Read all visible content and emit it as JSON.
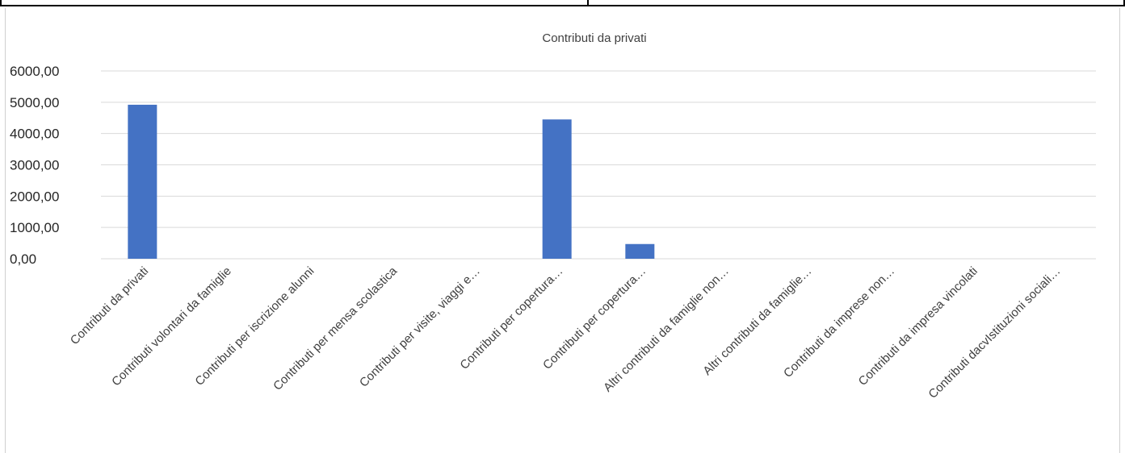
{
  "chart_data": {
    "type": "bar",
    "title": "Contributi da privati",
    "xlabel": "",
    "ylabel": "",
    "ylim": [
      0,
      6000
    ],
    "yticks": [
      "0,00",
      "1000,00",
      "2000,00",
      "3000,00",
      "4000,00",
      "5000,00",
      "6000,00"
    ],
    "grid": true,
    "legend": "none",
    "bar_color": "#4472c4",
    "categories": [
      "Contributi da privati",
      "Contributi volontari da famiglie",
      "Contributi per iscrizione alunni",
      "Contributi per mensa scolastica",
      "Contributi per visite, viaggi e…",
      "Contributi per copertura…",
      "Contributi per copertura…",
      "Altri contributi da famiglie non…",
      "Altri contributi da famiglie…",
      "Contributi da imprese non…",
      "Contributi da impresa vincolati",
      "Contributi dacvIstituzioni sociali…"
    ],
    "values": [
      4920,
      0,
      0,
      0,
      0,
      4450,
      470,
      0,
      0,
      0,
      0,
      0
    ]
  }
}
